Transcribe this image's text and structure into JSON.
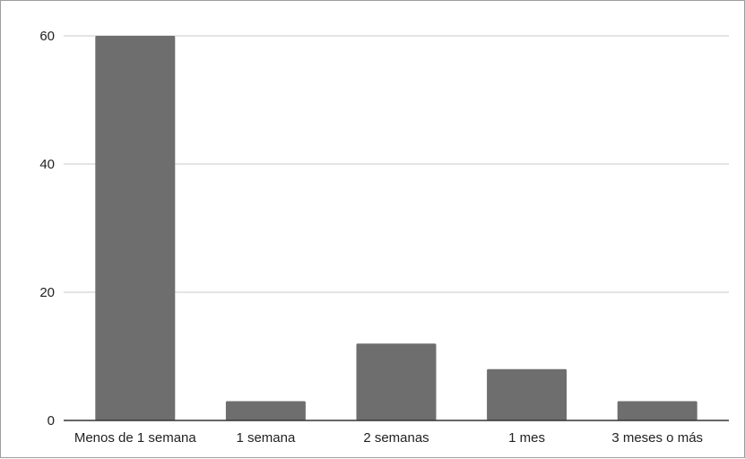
{
  "chart_data": {
    "type": "bar",
    "title": "",
    "xlabel": "",
    "ylabel": "",
    "categories": [
      "Menos de 1 semana",
      "1 semana",
      "2 semanas",
      "1 mes",
      "3 meses o más"
    ],
    "values": [
      60,
      3,
      12,
      8,
      3
    ],
    "ylim": [
      0,
      60
    ],
    "yticks": [
      "0",
      "20",
      "40",
      "60"
    ],
    "bar_color": "#6e6e6e",
    "grid": true,
    "legend": "none"
  }
}
